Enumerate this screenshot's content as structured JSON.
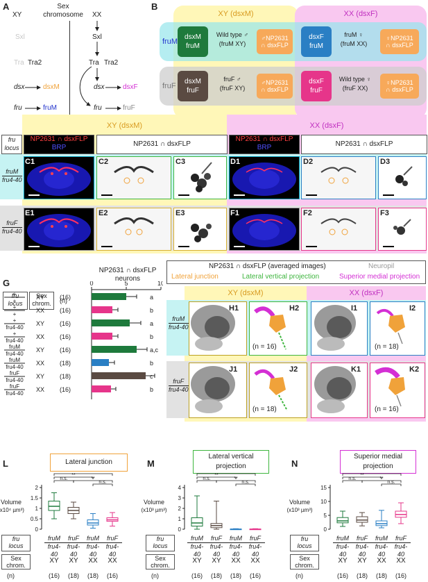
{
  "panelA": {
    "letter": "A",
    "xy": "XY",
    "sexchrom": "Sex\nchromosome",
    "xx": "XX",
    "sxl_l": "Sxl",
    "sxl_r": "Sxl",
    "tra_l": "Tra",
    "tra2_l": "Tra2",
    "tra_r": "Tra",
    "tra2_r": "Tra2",
    "dsx_l": "dsx",
    "dsxM": "dsxM",
    "fru_l": "fru",
    "fruM": "fruM",
    "dsx_r": "dsx",
    "dsxF": "dsxF",
    "fru_r": "fru",
    "fruF": "fruF"
  },
  "panelB": {
    "letter": "B",
    "xy_head": "XY (dsxM)",
    "xx_head": "XX (dsxF)",
    "fruM_row": "fruM",
    "fruF_row": "fruF",
    "cells": [
      {
        "tile": "dsxM\nfruM",
        "desc1": "Wild type ♂",
        "desc2": "(fruM XY)",
        "tag": "♂NP2631\n∩ dsxFLP"
      },
      {
        "tile": "dsxF\nfruM",
        "desc1": "fruM ♀",
        "desc2": "(fruM XX)",
        "tag": "♀NP2631\n∩ dsxFLP"
      },
      {
        "tile": "dsxM\nfruF",
        "desc1": "fruF ♂",
        "desc2": "(fruF XY)",
        "tag": "♂NP2631\n∩ dsxFLP"
      },
      {
        "tile": "dsxF\nfruF",
        "desc1": "Wild type ♀",
        "desc2": "(fruF XX)",
        "tag": "♀NP2631\n∩ dsxFLP"
      }
    ]
  },
  "panelC": {
    "xy_head": "XY (dsxM)",
    "xx_head": "XX (dsxF)",
    "fru_locus": "fru\nlocus",
    "np_red": "NP2631 ∩ dsxFLP",
    "brp": "BRP",
    "np_black": "NP2631 ∩ dsxFLP",
    "row1_num": "fruM",
    "row1_den": "fru4-40",
    "row2_num": "fruF",
    "row2_den": "fru4-40",
    "labels": [
      "C1",
      "C2",
      "C3",
      "D1",
      "D2",
      "D3",
      "E1",
      "E2",
      "E3",
      "F1",
      "F2",
      "F3"
    ]
  },
  "panelG": {
    "letter": "G",
    "col_fru": "fru\nlocus",
    "col_sex": "Sex\nchrom.",
    "col_n": "(n)",
    "title": "NP2631 ∩ dsxFLP\nneurons",
    "axis": [
      "0",
      "5",
      "10"
    ],
    "rows": [
      {
        "fru": "+ / +",
        "sex": "XY",
        "n": "(16)",
        "sig": "a",
        "value": 5.0,
        "err": 1.5,
        "color": "#1e7a3c"
      },
      {
        "fru": "+ / +",
        "sex": "XX",
        "n": "(16)",
        "sig": "b",
        "value": 3.0,
        "err": 0.8,
        "color": "#e6358a"
      },
      {
        "fru": "+ / fru4-40",
        "sex": "XY",
        "n": "(16)",
        "sig": "a",
        "value": 5.5,
        "err": 1.6,
        "color": "#1e7a3c"
      },
      {
        "fru": "+ / fru4-40",
        "sex": "XX",
        "n": "(16)",
        "sig": "b",
        "value": 3.0,
        "err": 0.8,
        "color": "#e6358a"
      },
      {
        "fru": "fruM / fru4-40",
        "sex": "XY",
        "n": "(16)",
        "sig": "a,c",
        "value": 6.5,
        "err": 1.5,
        "color": "#1e7a3c"
      },
      {
        "fru": "fruM / fru4-40",
        "sex": "XX",
        "n": "(18)",
        "sig": "b",
        "value": 2.5,
        "err": 0.8,
        "color": "#2a7fc4"
      },
      {
        "fru": "fruF / fru4-40",
        "sex": "XY",
        "n": "(18)",
        "sig": "c",
        "value": 7.8,
        "err": 1.3,
        "color": "#5a4a42"
      },
      {
        "fru": "fruF / fru4-40",
        "sex": "XX",
        "n": "(16)",
        "sig": "b",
        "value": 2.8,
        "err": 0.7,
        "color": "#e6358a"
      }
    ]
  },
  "panelH": {
    "legend_title": "NP2631 ∩ dsxFLP (averaged images)",
    "neuropil": "Neuropil",
    "lj": "Lateral junction",
    "lvp": "Lateral vertical projection",
    "smp": "Superior medial projection",
    "xy_head": "XY (dsxM)",
    "xx_head": "XX (dsxF)",
    "row1_num": "fruM",
    "row1_den": "fru4-40",
    "row2_num": "fruF",
    "row2_den": "fru4-40",
    "labels": [
      "H1",
      "H2",
      "I1",
      "I2",
      "J1",
      "J2",
      "K1",
      "K2"
    ],
    "n": [
      "(n = 16)",
      "(n = 18)",
      "(n = 18)",
      "(n = 16)"
    ]
  },
  "boxplots": [
    {
      "letter": "L",
      "title": "Lateral junction",
      "ylabel": "Volume\n(x10⁴ µm³)",
      "yticks": [
        "0",
        "0.5",
        "1",
        "1.5",
        "2"
      ],
      "ymax": 2,
      "sig": [
        "**",
        "**",
        "n.s.",
        "**",
        "n.s."
      ],
      "boxes": [
        {
          "min": 0.5,
          "q1": 0.9,
          "med": 1.1,
          "q3": 1.35,
          "max": 1.75
        },
        {
          "min": 0.5,
          "q1": 0.75,
          "med": 0.9,
          "q3": 1.05,
          "max": 1.3
        },
        {
          "min": 0.05,
          "q1": 0.2,
          "med": 0.3,
          "q3": 0.45,
          "max": 0.75
        },
        {
          "min": 0.15,
          "q1": 0.38,
          "med": 0.45,
          "q3": 0.55,
          "max": 0.8
        }
      ]
    },
    {
      "letter": "M",
      "title": "Lateral vertical\nprojection",
      "ylabel": "Volume\n(x10³ µm³)",
      "yticks": [
        "0",
        "1",
        "2",
        "3",
        "4"
      ],
      "ymax": 4,
      "sig": [
        "**",
        "**",
        "n.s.",
        "**",
        "n.s."
      ],
      "boxes": [
        {
          "min": 0,
          "q1": 0.3,
          "med": 0.6,
          "q3": 1.1,
          "max": 3.2
        },
        {
          "min": 0,
          "q1": 0.15,
          "med": 0.35,
          "q3": 0.55,
          "max": 2.7
        },
        {
          "min": 0,
          "q1": 0,
          "med": 0,
          "q3": 0.02,
          "max": 0.05
        },
        {
          "min": 0,
          "q1": 0,
          "med": 0,
          "q3": 0.02,
          "max": 0.05
        }
      ]
    },
    {
      "letter": "N",
      "title": "Superior medial\nprojection",
      "ylabel": "Volume\n(x10³ µm³)",
      "yticks": [
        "0",
        "5",
        "10",
        "15"
      ],
      "ymax": 15,
      "sig": [
        "**",
        "**",
        "n.s.",
        "**",
        "n.s."
      ],
      "boxes": [
        {
          "min": 1,
          "q1": 2.3,
          "med": 3,
          "q3": 4.2,
          "max": 6.5
        },
        {
          "min": 1.2,
          "q1": 2.5,
          "med": 3.3,
          "q3": 4.5,
          "max": 6
        },
        {
          "min": 0.5,
          "q1": 1.3,
          "med": 2,
          "q3": 3,
          "max": 6.8
        },
        {
          "min": 2,
          "q1": 4.3,
          "med": 5.3,
          "q3": 6.5,
          "max": 9.5
        }
      ]
    }
  ],
  "bottom_table": {
    "fru_locus": "fru\nlocus",
    "sex_chrom": "Sex\nchrom.",
    "n_label": "(n)",
    "genos": [
      {
        "num": "fruM",
        "den": "fru4-40"
      },
      {
        "num": "fruF",
        "den": "fru4-40"
      },
      {
        "num": "fruM",
        "den": "fru4-40"
      },
      {
        "num": "fruF",
        "den": "fru4-40"
      }
    ],
    "sex": [
      "XY",
      "XY",
      "XX",
      "XX"
    ],
    "n": [
      "(16)",
      "(18)",
      "(18)",
      "(16)"
    ]
  },
  "colors": {
    "xy_bg": "#fff7b8",
    "xx_bg": "#f9c8f0",
    "fruM_bg": "#c6f3f3",
    "fruF_bg": "#e2e2e2",
    "green": "#1e7a3c",
    "blue": "#2a7fc4",
    "brown": "#5a4a42",
    "pink": "#e6358a",
    "orange": "#f0a23a",
    "lvp_green": "#3db53d",
    "magenta": "#d42fd4"
  }
}
